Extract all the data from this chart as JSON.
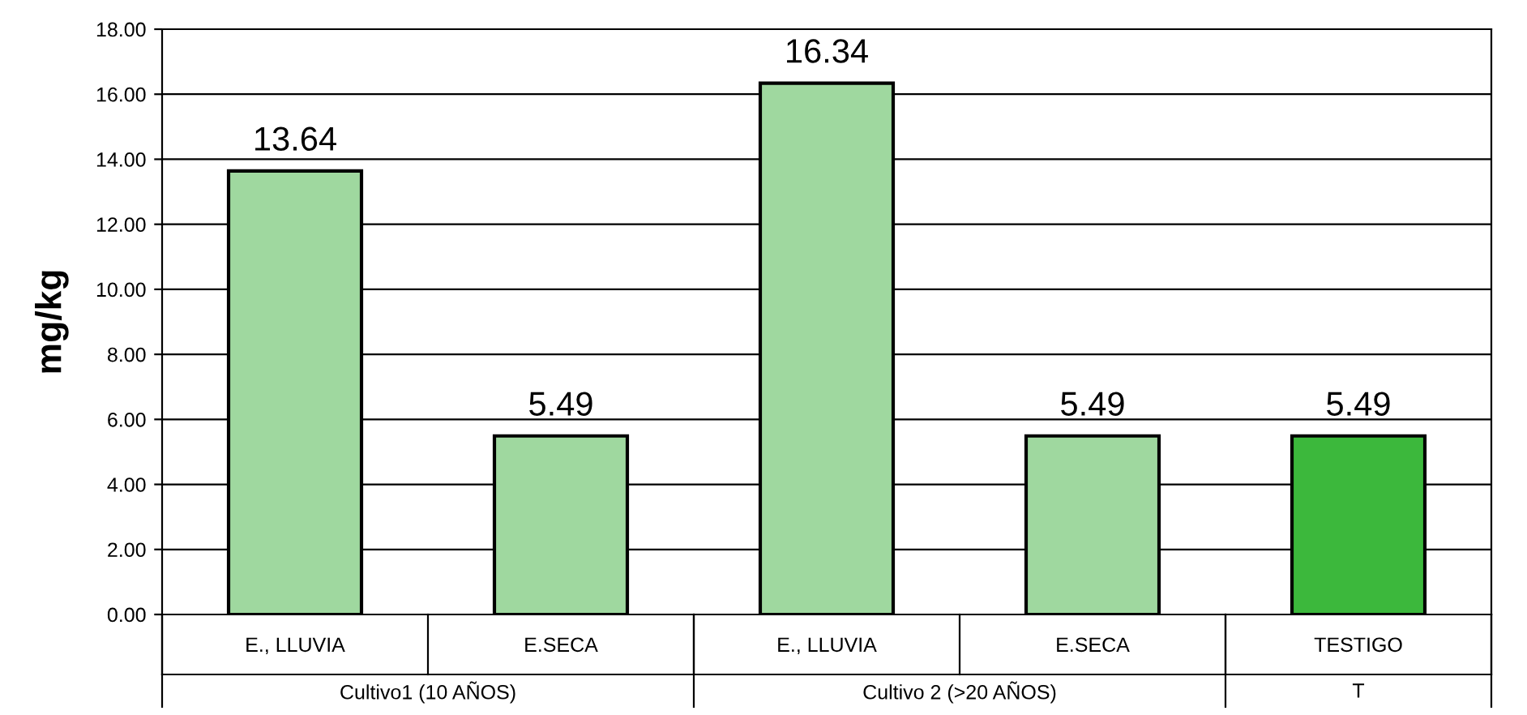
{
  "chart_data": {
    "type": "bar",
    "ylabel": "mg/kg",
    "categories": [
      "E., LLUVIA",
      "E.SECA",
      "E., LLUVIA",
      "E.SECA",
      "TESTIGO"
    ],
    "values": [
      13.64,
      5.49,
      16.34,
      5.49,
      5.49
    ],
    "colors": [
      "#9fd89f",
      "#9fd89f",
      "#9fd89f",
      "#9fd89f",
      "#3cb83c"
    ],
    "data_labels": true,
    "ylim": [
      0,
      18
    ],
    "yticks": [
      {
        "value": 0,
        "label": "0.00"
      },
      {
        "value": 2,
        "label": "2.00"
      },
      {
        "value": 4,
        "label": "4.00"
      },
      {
        "value": 6,
        "label": "6.00"
      },
      {
        "value": 8,
        "label": "8.00"
      },
      {
        "value": 10,
        "label": "10.00"
      },
      {
        "value": 12,
        "label": "12.00"
      },
      {
        "value": 14,
        "label": "14.00"
      },
      {
        "value": 16,
        "label": "16.00"
      },
      {
        "value": 18,
        "label": "18.00"
      }
    ],
    "grid": "y",
    "annotations": [
      "Cultivo1 (10 AÑOS)",
      "Cultivo 2 (>20 AÑOS)",
      "T"
    ]
  }
}
